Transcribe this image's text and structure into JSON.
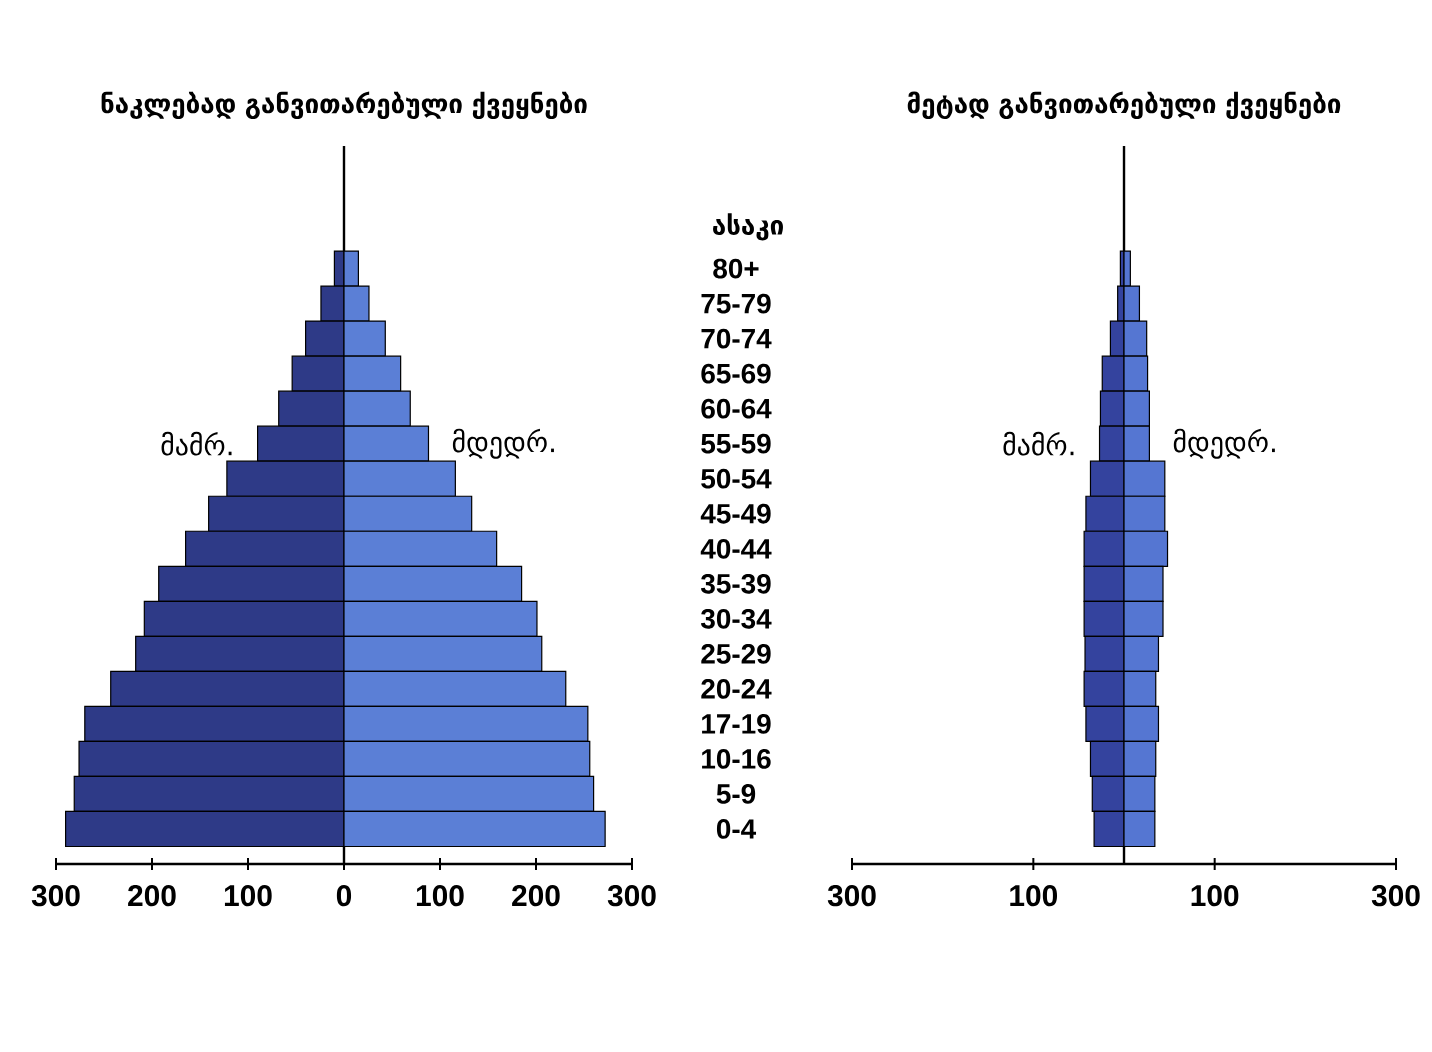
{
  "chart_data": [
    {
      "type": "bar",
      "orientation": "horizontal",
      "stacked": true,
      "title": "ნაკლებად განვითარებული ქვეყნები",
      "ylabel": "ასაკი",
      "categories": [
        "80+",
        "75-79",
        "70-74",
        "65-69",
        "60-64",
        "55-59",
        "50-54",
        "45-49",
        "40-44",
        "35-39",
        "30-34",
        "25-29",
        "20-24",
        "17-19",
        "10-16",
        "5-9",
        "0-4"
      ],
      "series": [
        {
          "name": "მამრ.",
          "color": "#2e3a87",
          "values": [
            -10,
            -24,
            -40,
            -54,
            -68,
            -90,
            -122,
            -141,
            -165,
            -193,
            -208,
            -217,
            -243,
            -270,
            -276,
            -281,
            -290
          ]
        },
        {
          "name": "მდედრ.",
          "color": "#5b7fd6",
          "values": [
            15,
            26,
            43,
            59,
            69,
            88,
            116,
            133,
            159,
            185,
            201,
            206,
            231,
            254,
            256,
            260,
            272
          ]
        }
      ],
      "xlim": [
        -300,
        300
      ],
      "xticks": [
        {
          "value": -300,
          "label": "300"
        },
        {
          "value": -200,
          "label": "200"
        },
        {
          "value": -100,
          "label": "100"
        },
        0,
        100,
        200,
        300
      ]
    },
    {
      "type": "bar",
      "orientation": "horizontal",
      "stacked": true,
      "title": "მეტად განვითარებული ქვეყნები",
      "categories": [
        null,
        null,
        null,
        null,
        null,
        null,
        null,
        null,
        null,
        null,
        null,
        null,
        null,
        null,
        null,
        null,
        null
      ],
      "series": [
        {
          "name": "მამრ.",
          "color": "#34439e",
          "values": [
            -4,
            -7,
            -15,
            -24,
            -26,
            -27,
            -37,
            -42,
            -44,
            -44,
            -44,
            -43,
            -44,
            -42,
            -37,
            -35,
            -33
          ]
        },
        {
          "name": "მდედრ.",
          "color": "#5576d2",
          "values": [
            7,
            17,
            25,
            26,
            28,
            28,
            45,
            45,
            48,
            43,
            43,
            38,
            35,
            38,
            35,
            34,
            34
          ]
        }
      ],
      "xlim": [
        -300,
        300
      ],
      "xticks": [
        {
          "value": -300,
          "label": "300"
        },
        {
          "value": -100,
          "label": "100"
        },
        {
          "value": 100,
          "label": "100"
        },
        {
          "value": 300,
          "label": "300"
        }
      ],
      "tick_labels": "x"
    }
  ]
}
